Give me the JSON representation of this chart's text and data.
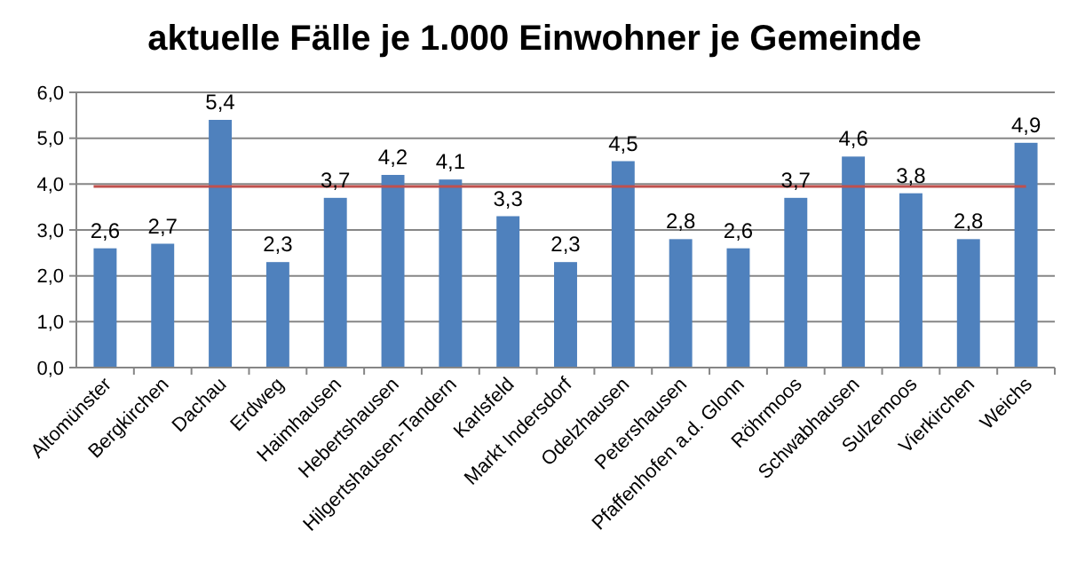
{
  "chart_data": {
    "type": "bar",
    "title": "aktuelle Fälle je 1.000 Einwohner je Gemeinde",
    "categories": [
      "Altomünster",
      "Bergkirchen",
      "Dachau",
      "Erdweg",
      "Haimhausen",
      "Hebertshausen",
      "Hilgertshausen-Tandern",
      "Karlsfeld",
      "Markt Indersdorf",
      "Odelzhausen",
      "Petershausen",
      "Pfaffenhofen a.d. Glonn",
      "Röhrmoos",
      "Schwabhausen",
      "Sulzemoos",
      "Vierkirchen",
      "Weichs"
    ],
    "values": [
      2.6,
      2.7,
      5.4,
      2.3,
      3.7,
      4.2,
      4.1,
      3.3,
      2.3,
      4.5,
      2.8,
      2.6,
      3.7,
      4.6,
      3.8,
      2.8,
      4.9
    ],
    "value_labels": [
      "2,6",
      "2,7",
      "5,4",
      "2,3",
      "3,7",
      "4,2",
      "4,1",
      "3,3",
      "2,3",
      "4,5",
      "2,8",
      "2,6",
      "3,7",
      "4,6",
      "3,8",
      "2,8",
      "4,9"
    ],
    "color": "#4f81bd",
    "ylim": [
      0,
      6
    ],
    "yticks": [
      {
        "value": 0,
        "label": "0,0"
      },
      {
        "value": 1,
        "label": "1,0"
      },
      {
        "value": 2,
        "label": "2,0"
      },
      {
        "value": 3,
        "label": "3,0"
      },
      {
        "value": 4,
        "label": "4,0"
      },
      {
        "value": 5,
        "label": "5,0"
      },
      {
        "value": 6,
        "label": "6,0"
      }
    ],
    "grid": "y",
    "ref_lines": [
      {
        "axis": "y",
        "value": 3.95,
        "color": "#c0504d"
      }
    ]
  }
}
